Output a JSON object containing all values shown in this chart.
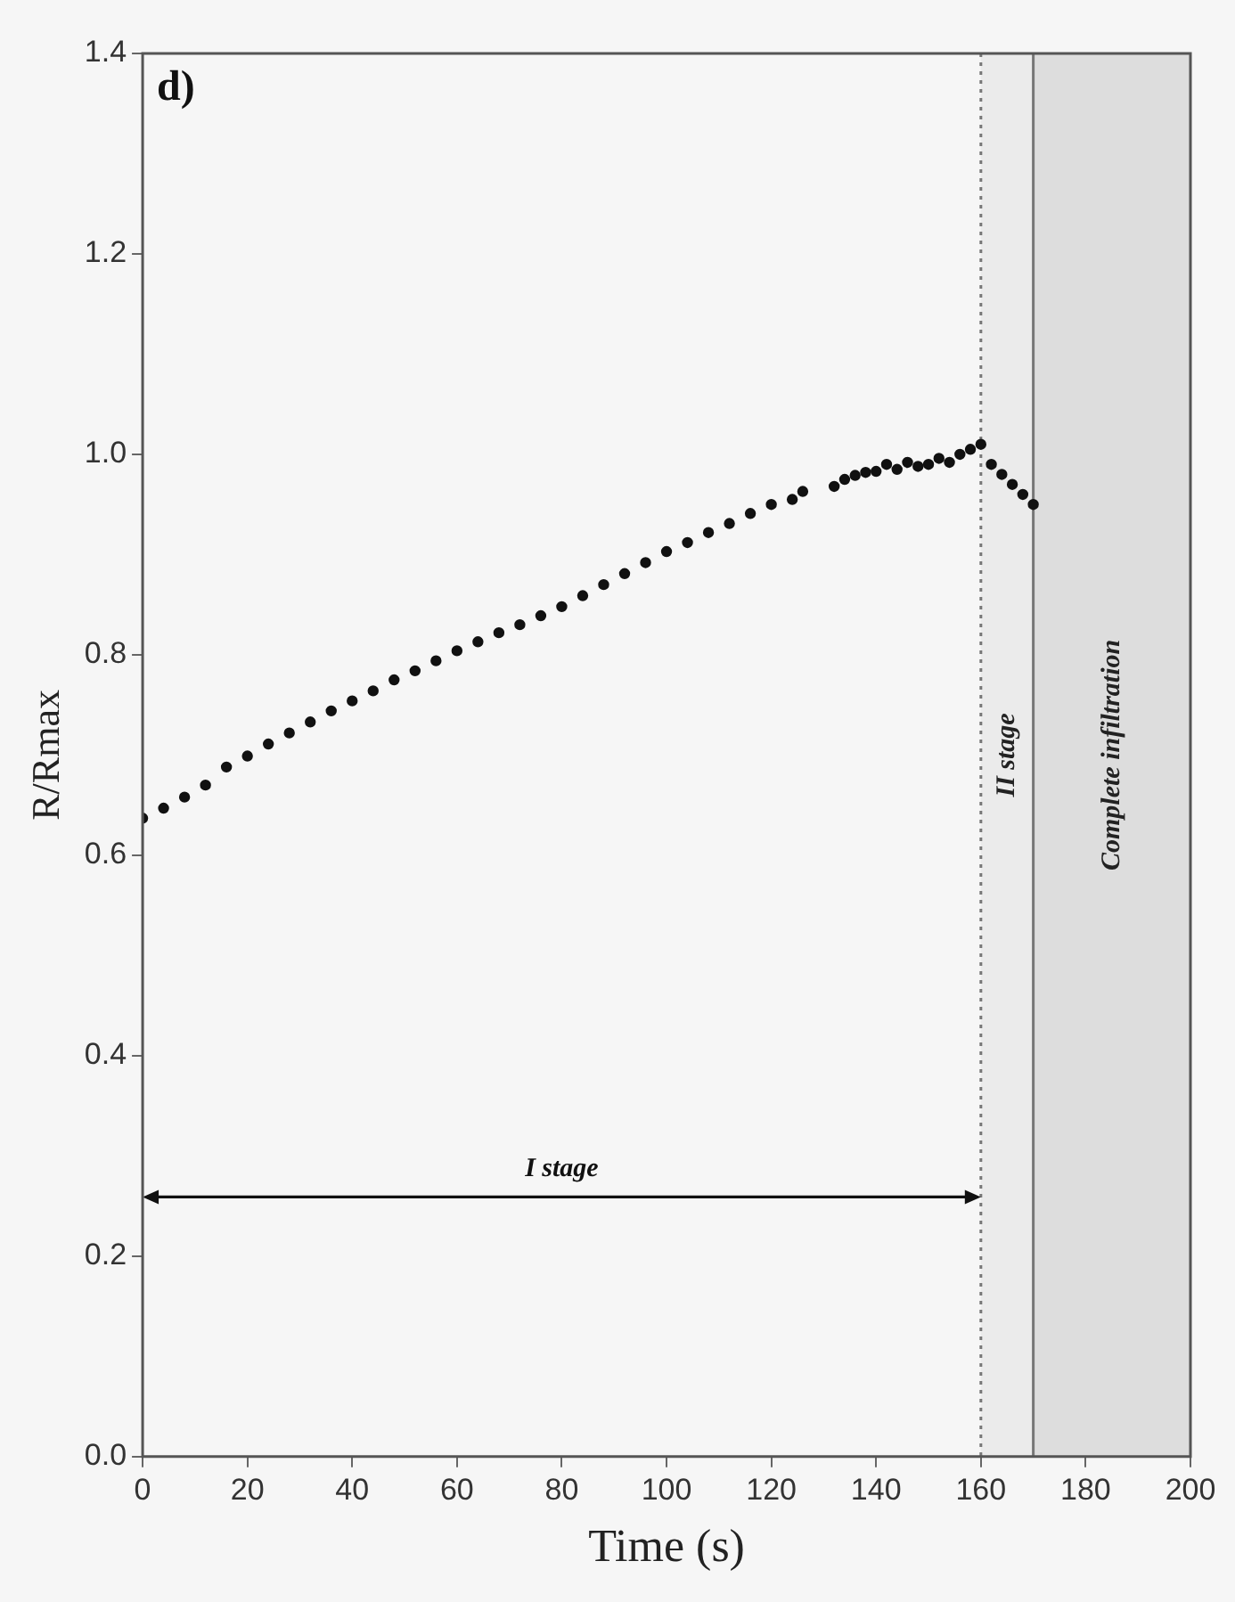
{
  "chart_data": {
    "type": "scatter",
    "xlabel": "Time (s)",
    "ylabel": "R/Rmax",
    "x": [
      0,
      4,
      8,
      12,
      16,
      20,
      24,
      28,
      32,
      36,
      40,
      44,
      48,
      52,
      56,
      60,
      64,
      68,
      72,
      76,
      80,
      84,
      88,
      92,
      96,
      100,
      104,
      108,
      112,
      116,
      120,
      124,
      126,
      132,
      134,
      136,
      138,
      140,
      142,
      144,
      146,
      148,
      150,
      152,
      154,
      156,
      158,
      160,
      162,
      164,
      166,
      168,
      170
    ],
    "series": [
      {
        "color": "#111111",
        "values": [
          0.637,
          0.647,
          0.658,
          0.67,
          0.688,
          0.699,
          0.711,
          0.722,
          0.733,
          0.744,
          0.754,
          0.764,
          0.775,
          0.784,
          0.794,
          0.804,
          0.813,
          0.822,
          0.83,
          0.839,
          0.848,
          0.859,
          0.87,
          0.881,
          0.892,
          0.903,
          0.912,
          0.922,
          0.931,
          0.941,
          0.95,
          0.955,
          0.963,
          0.968,
          0.975,
          0.979,
          0.982,
          0.983,
          0.99,
          0.985,
          0.992,
          0.988,
          0.99,
          0.996,
          0.992,
          1.0,
          1.005,
          1.01,
          0.99,
          0.98,
          0.97,
          0.96,
          0.95
        ]
      }
    ],
    "marker": "circle",
    "xlim": [
      0,
      200
    ],
    "xticks": [
      0,
      20,
      40,
      60,
      80,
      100,
      120,
      140,
      160,
      180,
      200
    ],
    "ylim": [
      0,
      1.4
    ],
    "yticks": [
      {
        "value": 0,
        "label": "0.0"
      },
      0.2,
      0.4,
      0.6,
      0.8,
      {
        "value": 1,
        "label": "1.0"
      },
      1.2,
      1.4
    ],
    "grid": false,
    "legend": false,
    "bands": [
      {
        "axis": "x",
        "from": 160,
        "to": 170,
        "label": "II stage",
        "color": "#ebebeb"
      },
      {
        "axis": "x",
        "from": 170,
        "to": 200,
        "label": "Complete infiltration",
        "color": "#dddddd"
      }
    ],
    "ref_lines": [
      {
        "axis": "x",
        "value": 160,
        "color": "#777777",
        "line_style": "dotted"
      },
      {
        "axis": "x",
        "value": 170,
        "color": "#777777",
        "line_style": "solid"
      }
    ],
    "annotations": [
      "d)",
      "I stage"
    ]
  }
}
